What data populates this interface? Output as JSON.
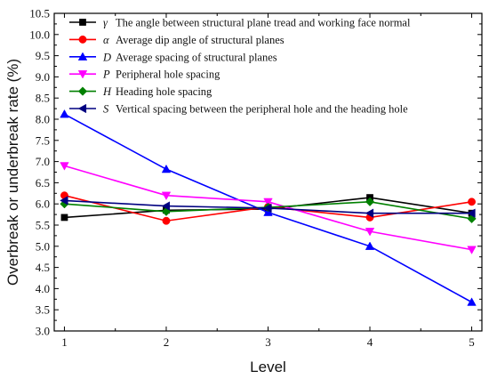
{
  "chart_data": {
    "type": "line",
    "xlabel": "Level",
    "ylabel": "Overbreak or underbreak rate (%)",
    "x": [
      1,
      2,
      3,
      4,
      5
    ],
    "xlim": [
      0.9,
      5.1
    ],
    "ylim": [
      3.0,
      10.5
    ],
    "xticks": [
      "1",
      "2",
      "3",
      "4",
      "5"
    ],
    "yticks": [
      "3.0",
      "3.5",
      "4.0",
      "4.5",
      "5.0",
      "5.5",
      "6.0",
      "6.5",
      "7.0",
      "7.5",
      "8.0",
      "8.5",
      "9.0",
      "9.5",
      "10.0",
      "10.5"
    ],
    "grid": false,
    "legend_position": "top-left",
    "series": [
      {
        "symbol": "γ",
        "name": "The angle between structural plane tread  and working face normal",
        "color": "#000000",
        "marker": "square",
        "values": [
          5.68,
          5.85,
          5.88,
          6.15,
          5.78
        ]
      },
      {
        "symbol": "α",
        "name": "Average dip angle of structural planes",
        "color": "#ff0000",
        "marker": "circle",
        "values": [
          6.2,
          5.6,
          5.93,
          5.68,
          6.05
        ]
      },
      {
        "symbol": "D",
        "name": "Average spacing of structural planes",
        "color": "#0000ff",
        "marker": "triangle-up",
        "values": [
          8.12,
          6.82,
          5.8,
          5.0,
          3.68
        ]
      },
      {
        "symbol": "P",
        "name": "Peripheral hole spacing",
        "color": "#ff00ff",
        "marker": "triangle-down",
        "values": [
          6.9,
          6.2,
          6.05,
          5.35,
          4.92
        ]
      },
      {
        "symbol": "H",
        "name": "Heading hole spacing",
        "color": "#008000",
        "marker": "diamond",
        "values": [
          6.0,
          5.82,
          5.92,
          6.05,
          5.65
        ]
      },
      {
        "symbol": "S",
        "name": "Vertical spacing between the peripheral hole and the heading hole",
        "color": "#000080",
        "marker": "triangle-left",
        "values": [
          6.08,
          5.95,
          5.9,
          5.78,
          5.78
        ]
      }
    ]
  }
}
